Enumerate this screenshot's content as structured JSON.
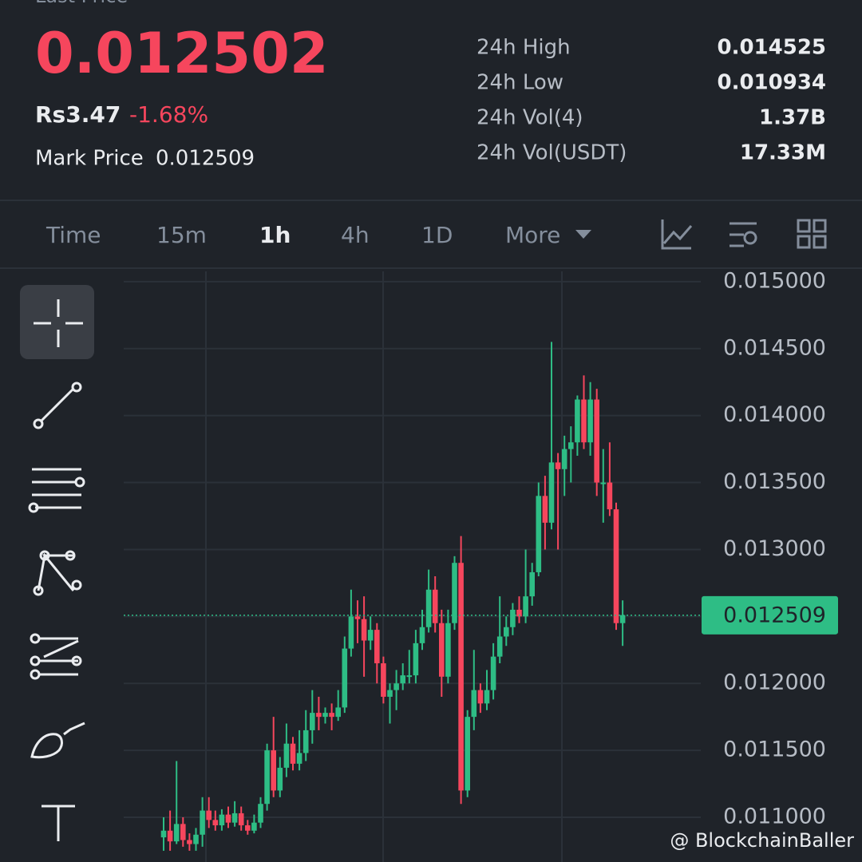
{
  "header": {
    "price_type": "Last Price",
    "last_price": "0.012502",
    "fiat_price": "Rs3.47",
    "change": "-1.68%",
    "mark_price_label": "Mark Price",
    "mark_price": "0.012509",
    "stats": [
      {
        "label": "24h High",
        "value": "0.014525"
      },
      {
        "label": "24h Low",
        "value": "0.010934"
      },
      {
        "label": "24h Vol(4)",
        "value": "1.37B"
      },
      {
        "label": "24h Vol(USDT)",
        "value": "17.33M"
      }
    ]
  },
  "timeframes": [
    "Time",
    "15m",
    "1h",
    "4h",
    "1D",
    "More"
  ],
  "selected_timeframe": 2,
  "watermark": "@ BlockchainBaller",
  "chart_data": {
    "type": "candlestick",
    "up_color": "#2ebd85",
    "down_color": "#f6465d",
    "grid": true,
    "ylim": [
      0.010666,
      0.015077
    ],
    "yticks": [
      {
        "value": 0.011,
        "label": "0.011000"
      },
      {
        "value": 0.0115,
        "label": "0.011500"
      },
      {
        "value": 0.012,
        "label": "0.012000"
      },
      {
        "value": 0.0125,
        "label": "0.012500"
      },
      {
        "value": 0.013,
        "label": "0.013000"
      },
      {
        "value": 0.0135,
        "label": "0.013500"
      },
      {
        "value": 0.014,
        "label": "0.014000"
      },
      {
        "value": 0.0145,
        "label": "0.014500"
      },
      {
        "value": 0.015,
        "label": "0.015000"
      }
    ],
    "current_price": 0.012509,
    "open": [
      0.01085,
      0.0109,
      0.01082,
      0.01095,
      0.01083,
      0.0108,
      0.01087,
      0.01105,
      0.01098,
      0.01094,
      0.01102,
      0.01096,
      0.01103,
      0.01094,
      0.0109,
      0.01096,
      0.0111,
      0.0115,
      0.0112,
      0.01137,
      0.01155,
      0.0114,
      0.01148,
      0.01165,
      0.01178,
      0.01175,
      0.01178,
      0.01175,
      0.01182,
      0.01226,
      0.0125,
      0.01248,
      0.01232,
      0.0124,
      0.01215,
      0.0119,
      0.01195,
      0.012,
      0.01206,
      0.01206,
      0.0123,
      0.01242,
      0.0127,
      0.01245,
      0.01205,
      0.01245,
      0.0129,
      0.0112,
      0.01175,
      0.01195,
      0.01185,
      0.01195,
      0.0122,
      0.01235,
      0.01242,
      0.01255,
      0.0125,
      0.01265,
      0.01283,
      0.0134,
      0.0132,
      0.01365,
      0.0136,
      0.01375,
      0.0138,
      0.01412,
      0.0138,
      0.01412,
      0.0135,
      0.0135,
      0.0133,
      0.01245
    ],
    "close": [
      0.0109,
      0.01082,
      0.01095,
      0.01083,
      0.0108,
      0.01087,
      0.01105,
      0.01098,
      0.01094,
      0.01102,
      0.01096,
      0.01103,
      0.01094,
      0.0109,
      0.01096,
      0.0111,
      0.0115,
      0.0112,
      0.01137,
      0.01155,
      0.0114,
      0.01148,
      0.01165,
      0.01178,
      0.01175,
      0.01178,
      0.01175,
      0.01182,
      0.01226,
      0.0125,
      0.01248,
      0.01232,
      0.0124,
      0.01215,
      0.0119,
      0.01195,
      0.012,
      0.01206,
      0.01206,
      0.0123,
      0.01242,
      0.0127,
      0.01245,
      0.01205,
      0.01245,
      0.0129,
      0.0112,
      0.01175,
      0.01195,
      0.01185,
      0.01195,
      0.0122,
      0.01235,
      0.01242,
      0.01255,
      0.0125,
      0.01265,
      0.01283,
      0.0134,
      0.0132,
      0.01365,
      0.0136,
      0.01375,
      0.0138,
      0.01412,
      0.0138,
      0.01412,
      0.0135,
      0.0135,
      0.0133,
      0.01245,
      0.01251
    ],
    "high": [
      0.011,
      0.01105,
      0.01142,
      0.011,
      0.01088,
      0.01092,
      0.01115,
      0.01115,
      0.01105,
      0.01106,
      0.01108,
      0.01112,
      0.01108,
      0.01098,
      0.01102,
      0.01115,
      0.01155,
      0.01175,
      0.01145,
      0.0117,
      0.0116,
      0.01165,
      0.0118,
      0.01195,
      0.0119,
      0.01182,
      0.01185,
      0.01195,
      0.01235,
      0.0127,
      0.01262,
      0.01265,
      0.0125,
      0.01245,
      0.0122,
      0.012,
      0.0121,
      0.01215,
      0.01225,
      0.0124,
      0.01255,
      0.01285,
      0.0128,
      0.01255,
      0.01255,
      0.01295,
      0.0131,
      0.0118,
      0.01225,
      0.012,
      0.0121,
      0.0123,
      0.01265,
      0.0125,
      0.0126,
      0.01265,
      0.013,
      0.0129,
      0.0135,
      0.01355,
      0.01455,
      0.01372,
      0.01385,
      0.01392,
      0.01415,
      0.0143,
      0.01425,
      0.0142,
      0.01375,
      0.0138,
      0.01335,
      0.01262
    ],
    "low": [
      0.01075,
      0.01075,
      0.0108,
      0.01078,
      0.01075,
      0.01075,
      0.01078,
      0.01092,
      0.0109,
      0.0109,
      0.01092,
      0.01093,
      0.0109,
      0.01087,
      0.01088,
      0.01092,
      0.01105,
      0.01115,
      0.01115,
      0.0113,
      0.01135,
      0.01135,
      0.01142,
      0.01155,
      0.01165,
      0.0117,
      0.01165,
      0.01172,
      0.01178,
      0.0122,
      0.0123,
      0.01205,
      0.01225,
      0.012,
      0.01185,
      0.0117,
      0.0118,
      0.01195,
      0.012,
      0.012,
      0.01225,
      0.01238,
      0.01238,
      0.0119,
      0.012,
      0.0124,
      0.0111,
      0.01115,
      0.01165,
      0.01178,
      0.0118,
      0.01188,
      0.01215,
      0.01228,
      0.01236,
      0.01245,
      0.01245,
      0.01258,
      0.0128,
      0.013,
      0.01315,
      0.013,
      0.0134,
      0.0135,
      0.0137,
      0.01375,
      0.0137,
      0.0134,
      0.0132,
      0.01325,
      0.0124,
      0.01228
    ]
  }
}
